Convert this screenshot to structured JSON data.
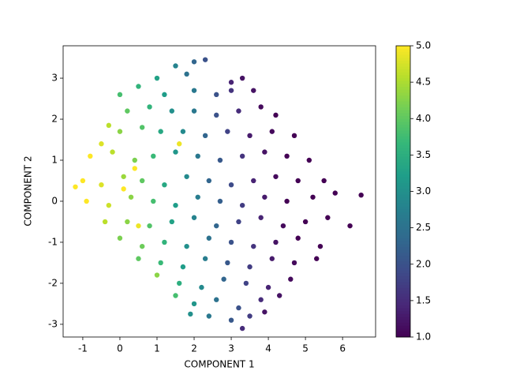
{
  "chart_data": {
    "type": "scatter",
    "x_label": "COMPONENT 1",
    "y_label": "COMPONENT 2",
    "x": [
      1.5,
      2.0,
      2.3,
      1.0,
      1.8,
      3.0,
      3.3,
      0.0,
      0.5,
      1.2,
      2.0,
      2.6,
      3.0,
      3.6,
      -0.3,
      0.2,
      0.8,
      1.4,
      2.0,
      2.6,
      3.2,
      3.8,
      4.2,
      -0.5,
      0.0,
      0.6,
      1.1,
      1.7,
      2.3,
      2.9,
      3.5,
      4.1,
      4.7,
      -0.8,
      -0.2,
      0.4,
      0.9,
      1.5,
      2.1,
      2.7,
      3.3,
      3.9,
      4.5,
      5.1,
      -1.0,
      -0.5,
      0.1,
      0.6,
      1.2,
      1.8,
      2.4,
      3.0,
      3.6,
      4.2,
      4.8,
      5.5,
      -1.2,
      -0.9,
      -0.3,
      0.3,
      0.9,
      1.5,
      2.1,
      2.7,
      3.3,
      3.9,
      4.5,
      5.2,
      5.8,
      6.5,
      -0.4,
      0.2,
      0.8,
      1.4,
      2.0,
      2.6,
      3.2,
      3.8,
      4.4,
      5.0,
      5.6,
      6.2,
      0.0,
      0.6,
      1.2,
      1.8,
      2.4,
      3.0,
      3.6,
      4.2,
      4.8,
      5.4,
      0.5,
      1.1,
      1.7,
      2.3,
      2.9,
      3.5,
      4.1,
      4.7,
      5.3,
      1.0,
      1.6,
      2.2,
      2.8,
      3.4,
      4.0,
      4.6,
      1.5,
      2.0,
      2.6,
      3.2,
      3.8,
      4.3,
      1.9,
      2.4,
      3.0,
      3.5,
      3.3,
      3.9,
      0.4,
      0.1,
      0.5,
      1.6
    ],
    "y": [
      3.3,
      3.4,
      3.45,
      3.0,
      3.1,
      2.9,
      3.0,
      2.6,
      2.8,
      2.6,
      2.7,
      2.6,
      2.7,
      2.7,
      1.85,
      2.2,
      2.3,
      2.2,
      2.2,
      2.1,
      2.2,
      2.3,
      2.1,
      1.4,
      1.7,
      1.8,
      1.7,
      1.7,
      1.6,
      1.7,
      1.6,
      1.7,
      1.6,
      1.1,
      1.2,
      1.0,
      1.1,
      1.2,
      1.1,
      1.0,
      1.1,
      1.2,
      1.1,
      1.0,
      0.5,
      0.4,
      0.6,
      0.5,
      0.4,
      0.6,
      0.5,
      0.4,
      0.5,
      0.6,
      0.5,
      0.5,
      0.35,
      0.0,
      -0.1,
      0.1,
      0.0,
      -0.1,
      0.1,
      0.0,
      -0.1,
      0.1,
      0.0,
      0.1,
      0.2,
      0.15,
      -0.5,
      -0.5,
      -0.6,
      -0.5,
      -0.4,
      -0.6,
      -0.5,
      -0.4,
      -0.6,
      -0.5,
      -0.4,
      -0.6,
      -0.9,
      -1.1,
      -1.0,
      -1.1,
      -0.9,
      -1.0,
      -1.1,
      -1.0,
      -0.9,
      -1.1,
      -1.4,
      -1.5,
      -1.6,
      -1.4,
      -1.5,
      -1.6,
      -1.4,
      -1.5,
      -1.4,
      -1.8,
      -2.0,
      -2.1,
      -1.9,
      -2.0,
      -2.1,
      -1.9,
      -2.3,
      -2.5,
      -2.4,
      -2.6,
      -2.4,
      -2.3,
      -2.75,
      -2.8,
      -2.9,
      -2.8,
      -3.1,
      -2.7,
      0.8,
      0.3,
      -0.6,
      1.4
    ],
    "c": [
      2.8,
      2.3,
      2.0,
      3.3,
      2.5,
      1.4,
      1.2,
      3.8,
      3.6,
      3.2,
      2.6,
      2.0,
      1.6,
      1.2,
      4.6,
      4.0,
      3.6,
      3.0,
      2.6,
      2.0,
      1.5,
      1.1,
      1.0,
      4.8,
      4.3,
      3.9,
      3.4,
      2.9,
      2.3,
      1.8,
      1.3,
      1.1,
      1.0,
      5.0,
      4.6,
      4.2,
      3.7,
      3.1,
      2.6,
      2.1,
      1.6,
      1.2,
      1.0,
      1.0,
      5.0,
      4.8,
      4.4,
      4.0,
      3.4,
      2.9,
      2.3,
      1.9,
      1.4,
      1.1,
      1.0,
      1.0,
      5.0,
      5.0,
      4.7,
      4.3,
      3.8,
      3.2,
      2.7,
      2.2,
      1.7,
      1.3,
      1.0,
      1.0,
      1.0,
      1.0,
      4.6,
      4.3,
      3.9,
      3.3,
      2.8,
      2.3,
      1.8,
      1.4,
      1.1,
      1.0,
      1.0,
      1.0,
      4.2,
      4.1,
      3.6,
      3.0,
      2.5,
      2.0,
      1.6,
      1.2,
      1.0,
      1.0,
      4.0,
      3.7,
      3.2,
      2.7,
      2.1,
      1.7,
      1.3,
      1.1,
      1.0,
      4.3,
      3.5,
      2.9,
      2.3,
      1.8,
      1.4,
      1.1,
      3.8,
      3.1,
      2.5,
      2.0,
      1.5,
      1.2,
      3.0,
      2.6,
      2.1,
      1.7,
      1.5,
      1.2,
      5.0,
      5.0,
      4.9,
      4.9
    ],
    "colormap": "viridis",
    "xlim": [
      -1.53,
      6.89
    ],
    "ylim": [
      -3.31,
      3.79
    ],
    "xticks": [
      -1,
      0,
      1,
      2,
      3,
      4,
      5,
      6
    ],
    "yticks": [
      -3,
      -2,
      -1,
      0,
      1,
      2,
      3
    ],
    "clim": [
      1,
      5
    ],
    "cticks": [
      {
        "value": 1,
        "label": "1.0"
      },
      {
        "value": 1.5,
        "label": "1.5"
      },
      {
        "value": 2,
        "label": "2.0"
      },
      {
        "value": 2.5,
        "label": "2.5"
      },
      {
        "value": 3,
        "label": "3.0"
      },
      {
        "value": 3.5,
        "label": "3.5"
      },
      {
        "value": 4,
        "label": "4.0"
      },
      {
        "value": 4.5,
        "label": "4.5"
      },
      {
        "value": 5,
        "label": "5.0"
      }
    ]
  }
}
